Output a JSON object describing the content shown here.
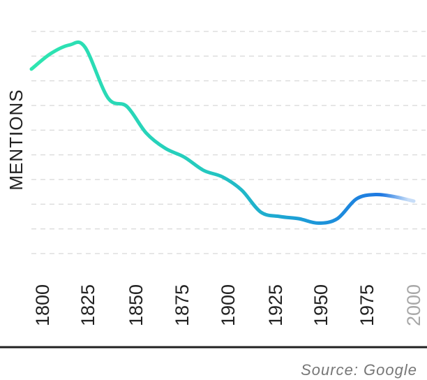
{
  "chart_data": {
    "type": "line",
    "title": "",
    "xlabel": "",
    "ylabel": "MENTIONS",
    "x": [
      1800,
      1810,
      1820,
      1828,
      1840,
      1850,
      1860,
      1870,
      1880,
      1890,
      1900,
      1910,
      1920,
      1930,
      1940,
      1950,
      1960,
      1970,
      1980,
      1990,
      2000
    ],
    "series": [
      {
        "values": [
          87,
          94,
          98,
          97,
          74,
          70,
          58,
          51,
          47,
          41,
          38,
          32,
          22,
          20,
          19,
          17,
          19,
          28,
          30,
          29,
          27
        ]
      }
    ],
    "xticks": [
      "1800",
      "1825",
      "1850",
      "1875",
      "1900",
      "1925",
      "1950",
      "1975",
      "2000"
    ],
    "xlim": [
      1800,
      2000
    ],
    "ylim": [
      0,
      100
    ],
    "grid": true,
    "gradient_colors": [
      "#2ee6b0",
      "#1e78e2"
    ],
    "text_color": "#222222",
    "muted_tick_color": "#a8a8a8"
  },
  "footer": {
    "source": "Source: Google"
  }
}
